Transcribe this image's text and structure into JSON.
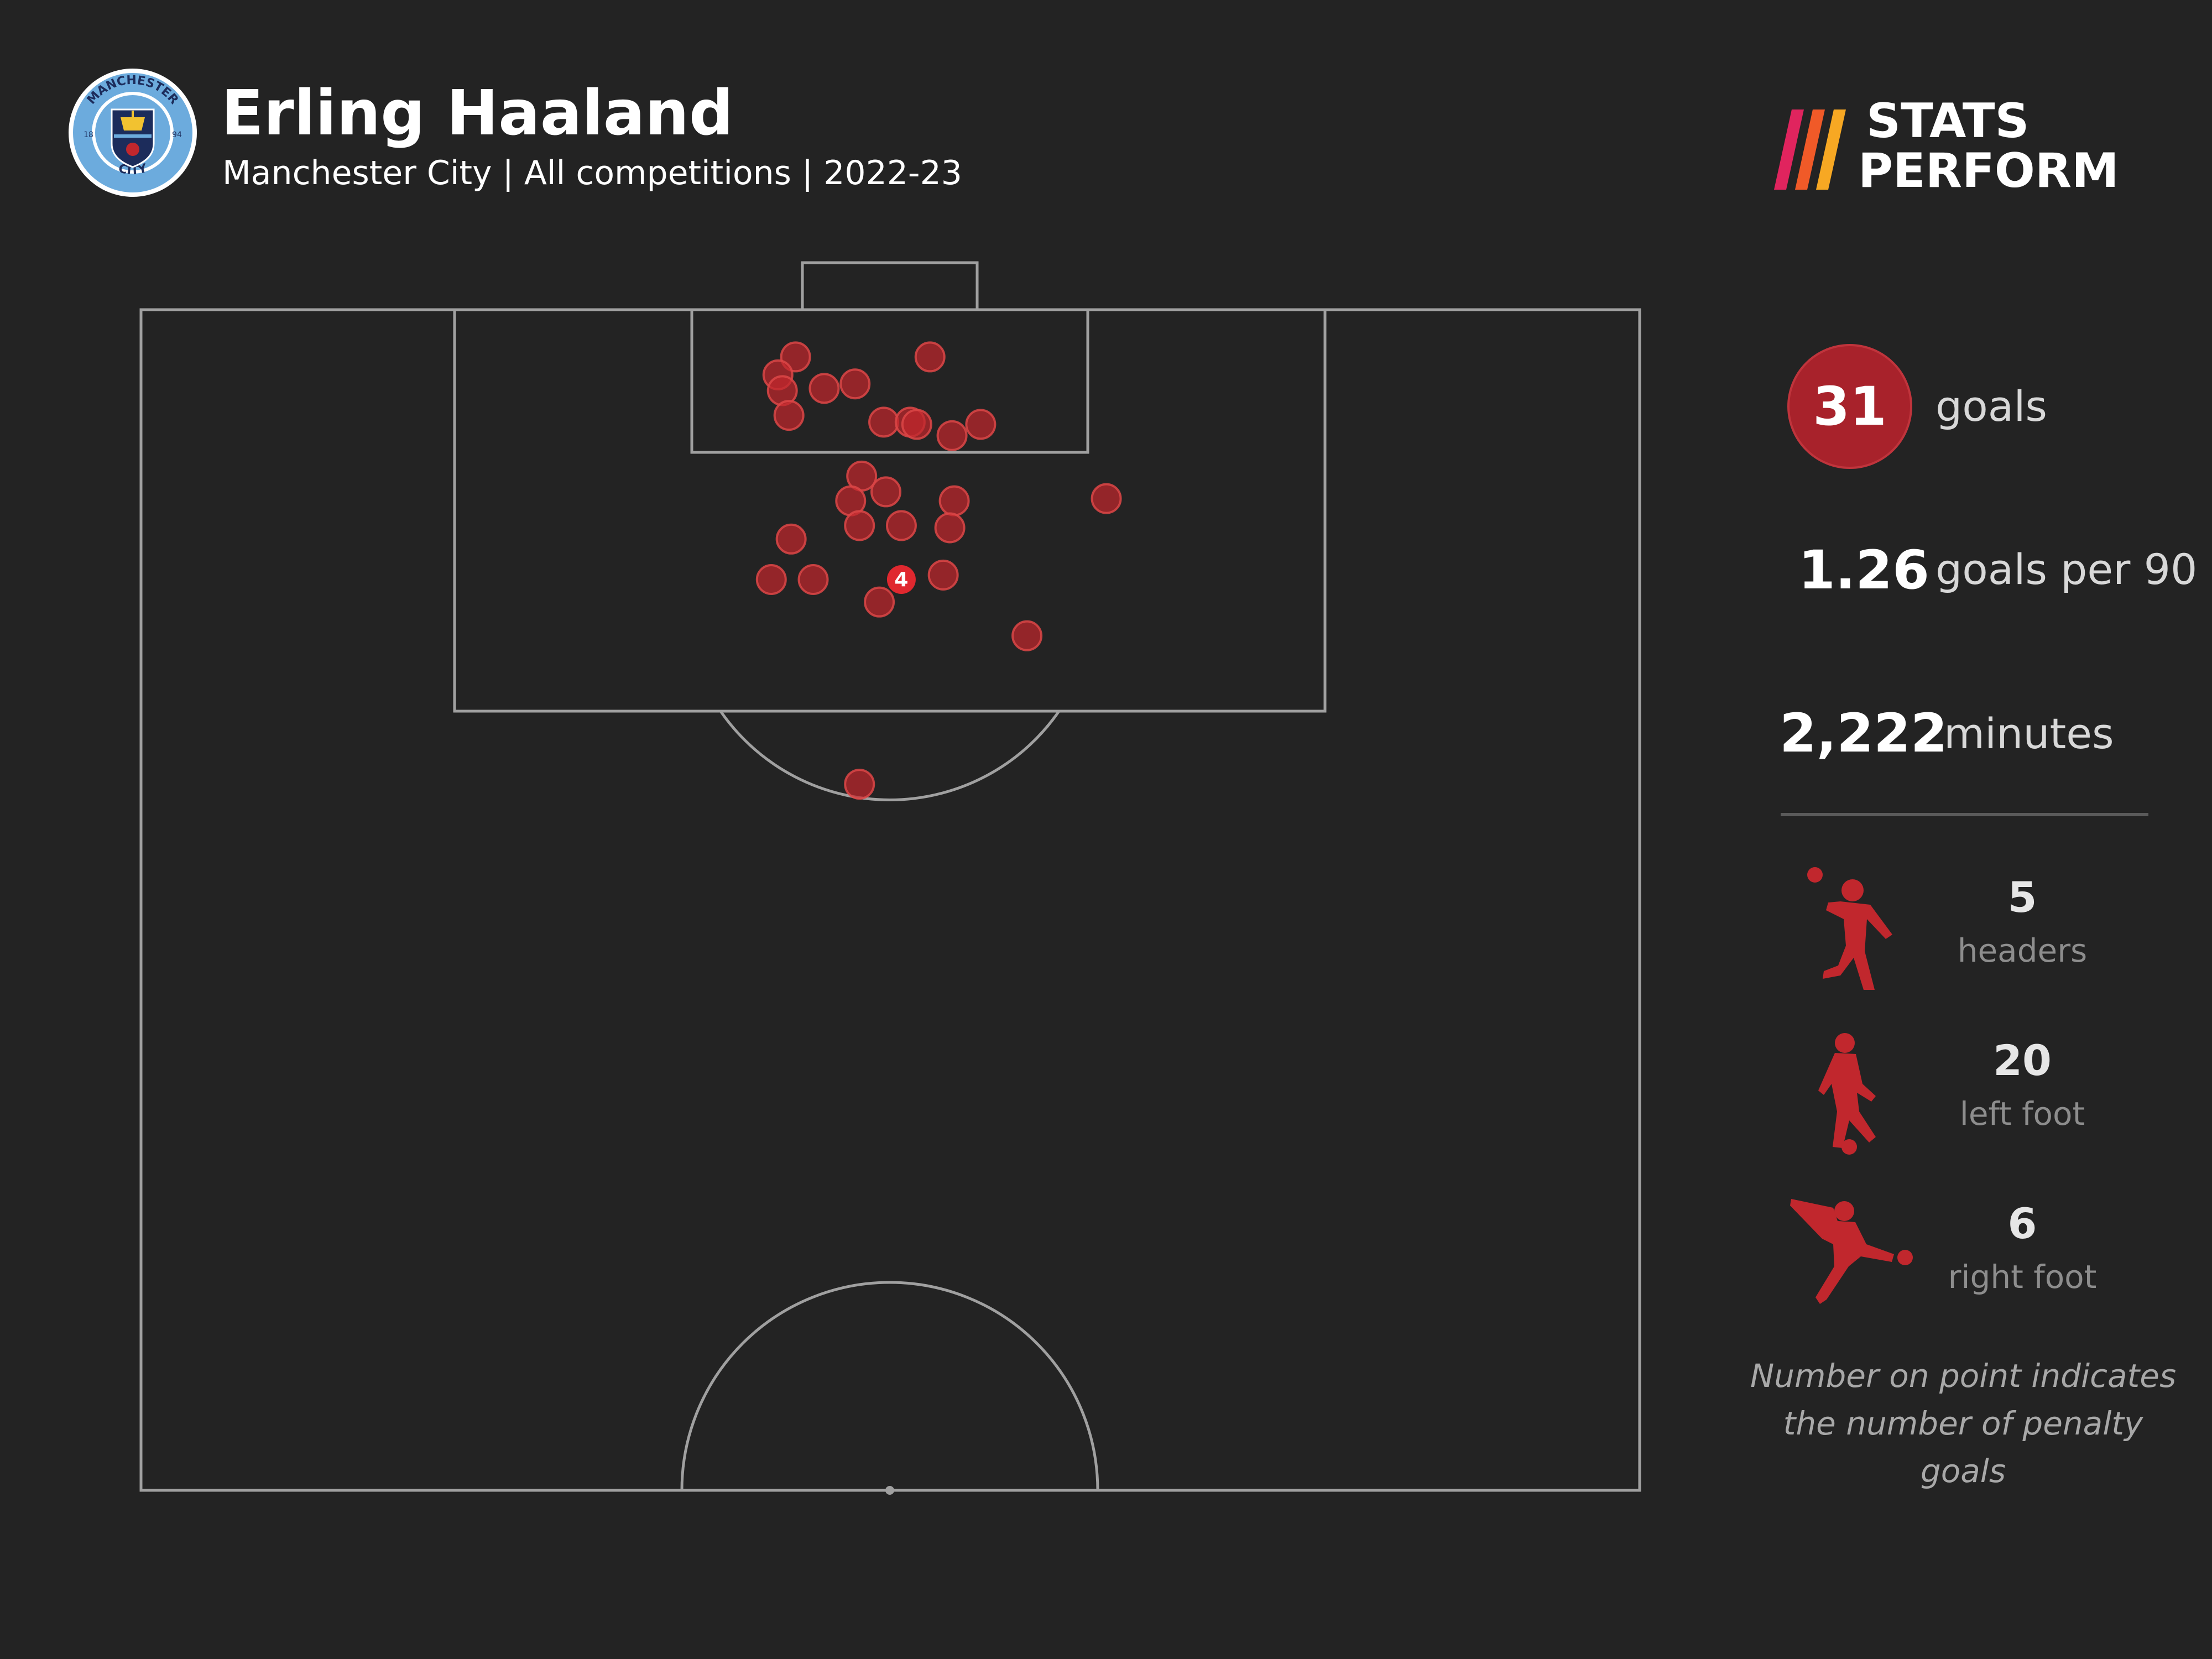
{
  "header": {
    "player_name": "Erling Haaland",
    "subtitle": "Manchester City | All competitions | 2022-23",
    "crest": {
      "top_text": "MANCHESTER",
      "bottom_text": "CITY",
      "year_left": "18",
      "year_right": "94",
      "ring_color": "#6cabdd",
      "inner_color": "#1c2c5b"
    },
    "brand": {
      "line1": "STATS",
      "line2": "PERFORM",
      "accent_colors": [
        "#e0245e",
        "#f05a28",
        "#f7a823"
      ]
    }
  },
  "stats": {
    "goals": {
      "value": "31",
      "label": "goals"
    },
    "goals_per_90": {
      "value": "1.26",
      "label": "goals per 90"
    },
    "minutes": {
      "value": "2,222",
      "label": "minutes"
    }
  },
  "goal_types": [
    {
      "icon": "header-player-icon",
      "value": "5",
      "label": "headers"
    },
    {
      "icon": "left-foot-player-icon",
      "value": "20",
      "label": "left foot"
    },
    {
      "icon": "right-foot-player-icon",
      "value": "6",
      "label": "right foot"
    }
  ],
  "note": {
    "line1": "Number on point indicates",
    "line2": "the number of penalty goals"
  },
  "colors": {
    "background": "#232323",
    "goal_marker": "#c1272d",
    "pitch_lines": "#a0a0a0"
  },
  "chart_data": {
    "type": "scatter",
    "description_units": "pitch coordinates in metres from the goal line (y) and from the left touchline (x), half-pitch 68 x 52.5",
    "xlim": [
      0,
      68
    ],
    "ylim": [
      0,
      52.5
    ],
    "points": [
      {
        "x": 29.7,
        "y": 2.1,
        "count": 1
      },
      {
        "x": 35.8,
        "y": 2.1,
        "count": 1
      },
      {
        "x": 28.9,
        "y": 2.9,
        "count": 1
      },
      {
        "x": 29.1,
        "y": 3.6,
        "count": 1
      },
      {
        "x": 31.0,
        "y": 3.5,
        "count": 1
      },
      {
        "x": 32.4,
        "y": 3.3,
        "count": 1
      },
      {
        "x": 29.4,
        "y": 4.7,
        "count": 1
      },
      {
        "x": 33.7,
        "y": 5.0,
        "count": 1
      },
      {
        "x": 34.9,
        "y": 5.0,
        "count": 1
      },
      {
        "x": 35.2,
        "y": 5.1,
        "count": 1
      },
      {
        "x": 36.8,
        "y": 5.6,
        "count": 1
      },
      {
        "x": 38.1,
        "y": 5.1,
        "count": 1
      },
      {
        "x": 32.7,
        "y": 7.4,
        "count": 1
      },
      {
        "x": 32.2,
        "y": 8.5,
        "count": 1
      },
      {
        "x": 33.8,
        "y": 8.1,
        "count": 1
      },
      {
        "x": 36.9,
        "y": 8.5,
        "count": 1
      },
      {
        "x": 43.8,
        "y": 8.4,
        "count": 1
      },
      {
        "x": 32.6,
        "y": 9.6,
        "count": 1
      },
      {
        "x": 34.5,
        "y": 9.6,
        "count": 1
      },
      {
        "x": 36.7,
        "y": 9.7,
        "count": 1
      },
      {
        "x": 29.5,
        "y": 10.2,
        "count": 1
      },
      {
        "x": 28.6,
        "y": 12.0,
        "count": 1
      },
      {
        "x": 30.5,
        "y": 12.0,
        "count": 1
      },
      {
        "x": 36.4,
        "y": 11.8,
        "count": 1
      },
      {
        "x": 33.5,
        "y": 13.0,
        "count": 1
      },
      {
        "x": 40.2,
        "y": 14.5,
        "count": 1
      },
      {
        "x": 32.6,
        "y": 21.1,
        "count": 1
      },
      {
        "x": 34.5,
        "y": 12.0,
        "count": 4,
        "label": "4"
      }
    ]
  }
}
